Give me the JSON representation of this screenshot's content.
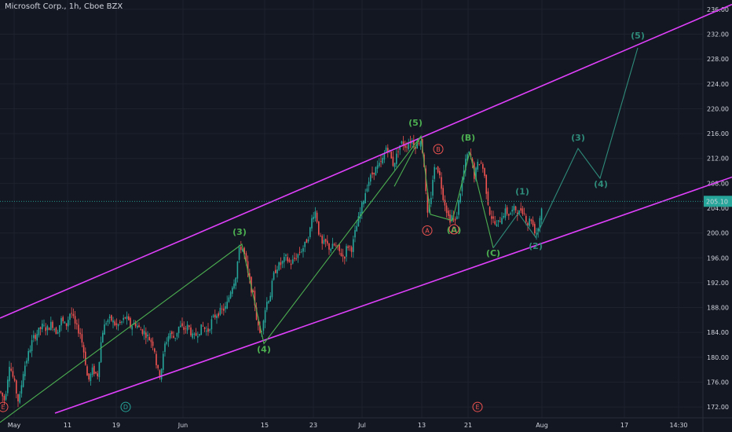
{
  "header": {
    "title": "Microsoft Corp., 1h, Cboe BZX"
  },
  "colors": {
    "background": "#131722",
    "up": "#26a69a",
    "down": "#ef5350",
    "channel": "#e040fb",
    "wave_green": "#4caf50",
    "projection": "#2e8b7a",
    "grid": "#1e222d",
    "price_label_bg": "#26a69a"
  },
  "chart_data": {
    "type": "candlestick",
    "ylim": [
      171,
      237
    ],
    "y_ticks": [
      172,
      176,
      180,
      184,
      188,
      192,
      196,
      200,
      204,
      208,
      212,
      216,
      220,
      224,
      228,
      232,
      236
    ],
    "y_tick_labels": [
      "172.00",
      "176.00",
      "180.00",
      "184.00",
      "188.00",
      "192.00",
      "196.00",
      "200.00",
      "204.00",
      "208.00",
      "212.00",
      "216.00",
      "220.00",
      "224.00",
      "228.00",
      "232.00",
      "236.00"
    ],
    "x_ticks": [
      "May",
      "11",
      "19",
      "Jun",
      "15",
      "23",
      "Jul",
      "13",
      "21",
      "Aug",
      "17",
      "14:30"
    ],
    "current_price": 205.1,
    "current_price_label": "205.10",
    "price_path": [
      [
        0,
        174.5
      ],
      [
        6,
        173
      ],
      [
        12,
        179
      ],
      [
        18,
        176
      ],
      [
        24,
        172.5
      ],
      [
        30,
        178
      ],
      [
        36,
        180.5
      ],
      [
        42,
        183
      ],
      [
        48,
        184
      ],
      [
        54,
        185
      ],
      [
        60,
        184.5
      ],
      [
        66,
        185.5
      ],
      [
        72,
        184
      ],
      [
        78,
        186
      ],
      [
        84,
        185
      ],
      [
        90,
        187.5
      ],
      [
        96,
        185
      ],
      [
        102,
        184
      ],
      [
        108,
        180
      ],
      [
        112,
        176
      ],
      [
        118,
        178
      ],
      [
        124,
        177
      ],
      [
        130,
        184
      ],
      [
        136,
        186
      ],
      [
        142,
        186
      ],
      [
        148,
        185
      ],
      [
        154,
        185.5
      ],
      [
        160,
        186.5
      ],
      [
        166,
        185
      ],
      [
        172,
        185.5
      ],
      [
        178,
        184.5
      ],
      [
        184,
        184
      ],
      [
        190,
        183
      ],
      [
        196,
        182
      ],
      [
        200,
        178
      ],
      [
        204,
        177
      ],
      [
        210,
        182
      ],
      [
        216,
        184
      ],
      [
        222,
        183
      ],
      [
        228,
        185
      ],
      [
        234,
        184.5
      ],
      [
        240,
        185
      ],
      [
        246,
        183
      ],
      [
        252,
        184
      ],
      [
        258,
        185
      ],
      [
        264,
        184
      ],
      [
        270,
        186
      ],
      [
        276,
        187
      ],
      [
        282,
        187.5
      ],
      [
        288,
        188
      ],
      [
        294,
        191
      ],
      [
        300,
        193
      ],
      [
        304,
        197
      ],
      [
        308,
        198
      ],
      [
        312,
        196
      ],
      [
        316,
        193
      ],
      [
        320,
        191
      ],
      [
        324,
        189
      ],
      [
        328,
        185
      ],
      [
        332,
        183.5
      ],
      [
        336,
        187
      ],
      [
        340,
        189
      ],
      [
        344,
        190
      ],
      [
        348,
        193
      ],
      [
        352,
        194.5
      ],
      [
        358,
        195
      ],
      [
        364,
        196
      ],
      [
        370,
        195
      ],
      [
        376,
        196
      ],
      [
        382,
        197
      ],
      [
        388,
        198
      ],
      [
        394,
        200
      ],
      [
        398,
        203
      ],
      [
        402,
        203.5
      ],
      [
        406,
        200
      ],
      [
        410,
        198
      ],
      [
        414,
        198.5
      ],
      [
        420,
        197.5
      ],
      [
        426,
        198
      ],
      [
        432,
        197
      ],
      [
        438,
        196
      ],
      [
        442,
        198
      ],
      [
        448,
        197.5
      ],
      [
        452,
        200
      ],
      [
        456,
        202
      ],
      [
        460,
        204
      ],
      [
        464,
        206
      ],
      [
        468,
        208
      ],
      [
        472,
        209
      ],
      [
        476,
        210
      ],
      [
        480,
        210.5
      ],
      [
        484,
        211
      ],
      [
        488,
        212
      ],
      [
        492,
        214
      ],
      [
        496,
        213
      ],
      [
        500,
        211
      ],
      [
        504,
        212
      ],
      [
        508,
        214
      ],
      [
        512,
        214.5
      ],
      [
        516,
        214
      ],
      [
        520,
        214.5
      ],
      [
        524,
        215
      ],
      [
        528,
        214
      ],
      [
        532,
        214.5
      ],
      [
        536,
        215
      ],
      [
        540,
        211
      ],
      [
        544,
        202.5
      ],
      [
        548,
        205
      ],
      [
        552,
        210
      ],
      [
        556,
        211
      ],
      [
        560,
        209
      ],
      [
        564,
        206
      ],
      [
        568,
        204
      ],
      [
        572,
        202
      ],
      [
        576,
        203
      ],
      [
        580,
        201.5
      ],
      [
        584,
        205
      ],
      [
        588,
        208
      ],
      [
        592,
        211
      ],
      [
        596,
        213
      ],
      [
        600,
        212
      ],
      [
        604,
        209
      ],
      [
        608,
        211
      ],
      [
        612,
        211.5
      ],
      [
        616,
        210
      ],
      [
        620,
        206
      ],
      [
        624,
        203
      ],
      [
        628,
        202
      ],
      [
        632,
        201
      ],
      [
        636,
        202
      ],
      [
        640,
        203
      ],
      [
        644,
        203.5
      ],
      [
        648,
        203
      ],
      [
        652,
        203.5
      ],
      [
        656,
        204
      ],
      [
        660,
        203
      ],
      [
        664,
        204
      ],
      [
        668,
        203
      ],
      [
        672,
        201.5
      ],
      [
        676,
        202.5
      ],
      [
        680,
        200.5
      ],
      [
        684,
        200
      ],
      [
        688,
        203
      ],
      [
        691,
        205.1
      ]
    ],
    "channel_lines": [
      {
        "name": "upper",
        "p1": [
          0,
          186.3
        ],
        "p2": [
          932,
          236.8
        ]
      },
      {
        "name": "lower",
        "p1": [
          70,
          171
        ],
        "p2": [
          932,
          209
        ]
      }
    ],
    "wave_paths": [
      {
        "name": "impulse",
        "color": "green",
        "points": [
          [
            0,
            169.5
          ],
          [
            308,
            198.2
          ],
          [
            336,
            182.2
          ],
          [
            536,
            215.6
          ],
          [
            548,
            203
          ],
          [
            576,
            202
          ],
          [
            598,
            213
          ],
          [
            628,
            197.6
          ]
        ]
      },
      {
        "name": "flat",
        "color": "green",
        "points": [
          [
            502,
            207.5
          ],
          [
            536,
            215.6
          ]
        ]
      },
      {
        "name": "projection",
        "color": "projection",
        "points": [
          [
            628,
            197.6
          ],
          [
            660,
            203.2
          ],
          [
            682,
            199.3
          ],
          [
            736,
            213.6
          ],
          [
            764,
            208.8
          ],
          [
            812,
            229.8
          ]
        ]
      }
    ],
    "wave_labels": [
      {
        "text": "(3)",
        "x": 305,
        "y": 199.7,
        "color": "green"
      },
      {
        "text": "(4)",
        "x": 336,
        "y": 180.8,
        "color": "green"
      },
      {
        "text": "(5)",
        "x": 529,
        "y": 217.3,
        "color": "green"
      },
      {
        "text": "(B)",
        "x": 596,
        "y": 214.9,
        "color": "green"
      },
      {
        "text": "(A)",
        "x": 578,
        "y": 200,
        "color": "green"
      },
      {
        "text": "(C)",
        "x": 628,
        "y": 196.3,
        "color": "green"
      },
      {
        "text": "(1)",
        "x": 665,
        "y": 206.2,
        "color": "projection"
      },
      {
        "text": "(2)",
        "x": 682,
        "y": 197.4,
        "color": "projection"
      },
      {
        "text": "(3)",
        "x": 736,
        "y": 214.9,
        "color": "projection"
      },
      {
        "text": "(4)",
        "x": 765,
        "y": 207.4,
        "color": "projection"
      },
      {
        "text": "(5)",
        "x": 812,
        "y": 231.3,
        "color": "projection"
      }
    ],
    "circle_markers": [
      {
        "text": "B",
        "x": 558,
        "y": 213.5,
        "color": "red"
      },
      {
        "text": "A",
        "x": 544,
        "y": 200.4,
        "color": "red"
      },
      {
        "text": "C",
        "x": 578,
        "y": 200.6,
        "color": "red"
      },
      {
        "text": "E",
        "x": 4,
        "y": 172,
        "color": "red"
      },
      {
        "text": "D",
        "x": 160,
        "y": 172,
        "color": "teal"
      },
      {
        "text": "E",
        "x": 608,
        "y": 172,
        "color": "red"
      }
    ]
  }
}
